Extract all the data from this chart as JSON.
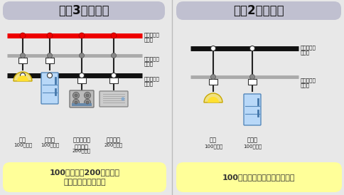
{
  "bg_color": "#e8e8e8",
  "title_left": "単相3線式では",
  "title_right": "単相2線式では",
  "title_bg": "#c0c0d0",
  "bottom_left_text": "100ボルトと200ボルトの\n両方の電気が使える",
  "bottom_right_text": "100ボルトの電気しか使えない",
  "bottom_bg": "#ffff99",
  "wire_red": "#ee0000",
  "wire_gray": "#aaaaaa",
  "wire_black": "#111111",
  "dot_red": "#ee0000",
  "dot_gray": "#888888",
  "dot_white": "#ffffff",
  "label_3line": [
    "電圧側電線\n（赤）",
    "接地側電線\n（白）",
    "電圧側電線\n（黒）"
  ],
  "label_2line": [
    "電圧側電線\n（黒）",
    "接地側電線\n（白）"
  ],
  "app_labels_left": [
    "照明",
    "冷蔵庫",
    "クッキング\nヒーター",
    "エアコン"
  ],
  "app_volts_left": [
    "100ボルト",
    "100ボルト",
    "200ボルト",
    "200ボルト"
  ],
  "app_labels_right": [
    "照明",
    "冷蔵庫"
  ],
  "app_volts_right": [
    "100ボルト",
    "100ボルト"
  ]
}
